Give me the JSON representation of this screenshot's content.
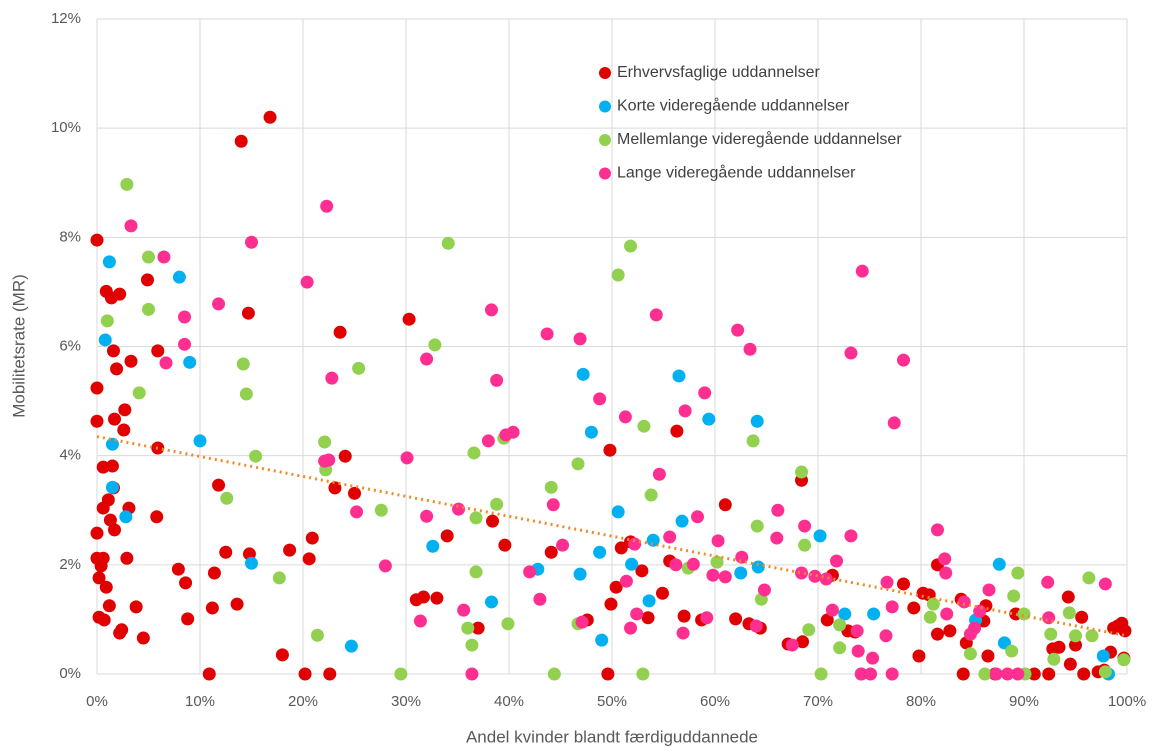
{
  "chart_data": {
    "type": "scatter",
    "x_label": "Andel kvinder blandt færdiguddannede",
    "y_label": "Mobilitetsrate (MR)",
    "xlim": [
      0,
      100
    ],
    "ylim": [
      0,
      12
    ],
    "xticks": [
      {
        "value": 0,
        "label": "0%"
      },
      {
        "value": 10,
        "label": "10%"
      },
      {
        "value": 20,
        "label": "20%"
      },
      {
        "value": 30,
        "label": "30%"
      },
      {
        "value": 40,
        "label": "40%"
      },
      {
        "value": 50,
        "label": "50%"
      },
      {
        "value": 60,
        "label": "60%"
      },
      {
        "value": 70,
        "label": "70%"
      },
      {
        "value": 80,
        "label": "80%"
      },
      {
        "value": 90,
        "label": "90%"
      },
      {
        "value": 100,
        "label": "100%"
      }
    ],
    "yticks": [
      {
        "value": 0,
        "label": "0%"
      },
      {
        "value": 2,
        "label": "2%"
      },
      {
        "value": 4,
        "label": "4%"
      },
      {
        "value": 6,
        "label": "6%"
      },
      {
        "value": 8,
        "label": "8%"
      },
      {
        "value": 10,
        "label": "10%"
      },
      {
        "value": 12,
        "label": "12%"
      }
    ],
    "grid": true,
    "legend": "top-center",
    "series": [
      {
        "name": "Erhvervsfaglige uddannelser",
        "color": "#e00000",
        "x": [
          0,
          0,
          0,
          0,
          0,
          0.2,
          0.2,
          0.4,
          0.6,
          0.6,
          0.6,
          0.7,
          0.9,
          0.9,
          1.1,
          1.3,
          1.2,
          1.4,
          1.5,
          1.6,
          1.6,
          1.7,
          1.7,
          1.9,
          2.2,
          2.2,
          2.4,
          2.6,
          2.7,
          2.9,
          3.1,
          3.3,
          3.8,
          4.5,
          4.9,
          5.8,
          5.9,
          5.9,
          7.9,
          8.6,
          8.8,
          10.9,
          11.2,
          11.4,
          11.8,
          12.5,
          13.6,
          14.0,
          14.7,
          14.8,
          16.8,
          18.0,
          18.7,
          20.2,
          20.6,
          20.9,
          22.6,
          23.1,
          23.6,
          24.1,
          25.0,
          30.3,
          31.0,
          31.7,
          33.0,
          34.0,
          37.0,
          38.4,
          39.6,
          44.1,
          47.6,
          49.6,
          49.8,
          49.9,
          50.4,
          50.9,
          51.8,
          52.9,
          53.5,
          54.9,
          55.6,
          56.3,
          57.0,
          58.7,
          61.0,
          62.0,
          63.3,
          64.4,
          67.1,
          68.4,
          68.5,
          70.9,
          71.4,
          72.9,
          73.6,
          78.3,
          79.3,
          79.8,
          80.2,
          80.8,
          81.6,
          81.6,
          82.8,
          83.9,
          84.1,
          84.4,
          86.1,
          86.3,
          86.5,
          87.2,
          89.2,
          91.0,
          92.4,
          92.8,
          93.4,
          94.3,
          94.5,
          95.0,
          95.6,
          95.8,
          97.2,
          97.8,
          98.4,
          98.7,
          99.1,
          99.5,
          99.7,
          99.8
        ],
        "values": [
          7.95,
          5.24,
          4.63,
          2.58,
          2.12,
          1.04,
          1.76,
          1.98,
          3.79,
          3.04,
          2.12,
          0.99,
          7.01,
          1.59,
          3.19,
          2.82,
          1.25,
          6.89,
          3.81,
          3.41,
          5.92,
          4.67,
          2.64,
          5.59,
          6.96,
          0.75,
          0.81,
          4.47,
          4.84,
          2.12,
          3.04,
          5.73,
          1.23,
          0.66,
          7.22,
          2.88,
          4.14,
          5.92,
          1.92,
          1.67,
          1.01,
          0,
          1.21,
          1.85,
          3.46,
          2.23,
          1.28,
          9.76,
          6.61,
          2.2,
          10.2,
          0.35,
          2.27,
          0,
          2.11,
          2.49,
          0,
          3.41,
          6.26,
          3.99,
          3.31,
          6.5,
          1.36,
          1.41,
          1.39,
          2.53,
          0.84,
          2.8,
          2.36,
          2.23,
          0.99,
          0,
          4.1,
          1.28,
          1.59,
          2.31,
          2.42,
          1.89,
          1.03,
          1.48,
          2.07,
          4.45,
          1.06,
          0.99,
          3.1,
          1.01,
          0.92,
          0.84,
          0.55,
          3.55,
          0.59,
          0.99,
          1.81,
          0.79,
          0.77,
          1.65,
          1.21,
          0.33,
          1.48,
          1.45,
          2.0,
          0.73,
          0.79,
          1.37,
          0,
          0.57,
          0.97,
          1.25,
          0.33,
          0,
          1.1,
          0,
          0,
          0.46,
          0.49,
          1.41,
          0.18,
          0.53,
          1.04,
          0,
          0.04,
          0.07,
          0.4,
          0.84,
          0.88,
          0.93,
          0.29,
          0.79
        ]
      },
      {
        "name": "Korte videregående uddannelser",
        "color": "#00b0f0",
        "x": [
          1.2,
          0.8,
          1.5,
          1.5,
          2.8,
          8.0,
          9.0,
          10.0,
          15.0,
          24.7,
          32.6,
          38.3,
          42.8,
          46.9,
          47.2,
          48.0,
          48.8,
          49.0,
          50.6,
          51.9,
          53.6,
          54.0,
          56.5,
          56.8,
          59.4,
          62.5,
          64.1,
          64.2,
          70.2,
          72.6,
          74.2,
          75.4,
          85.3,
          87.6,
          88.1,
          97.7,
          98.2
        ],
        "values": [
          7.55,
          6.12,
          4.21,
          3.42,
          2.88,
          7.27,
          5.71,
          4.27,
          2.03,
          0.51,
          2.34,
          1.32,
          1.92,
          1.83,
          5.49,
          4.43,
          2.23,
          0.62,
          2.97,
          2.01,
          1.34,
          2.45,
          5.46,
          2.8,
          4.67,
          1.85,
          4.63,
          1.96,
          2.53,
          1.1,
          0,
          1.1,
          0.99,
          2.01,
          0.57,
          0.33,
          0
        ]
      },
      {
        "name": "Mellemlange videregående uddannelser",
        "color": "#92d050",
        "x": [
          2.9,
          1.0,
          4.1,
          5.0,
          5.0,
          12.6,
          14.2,
          14.5,
          15.4,
          17.7,
          21.4,
          22.1,
          22.2,
          25.4,
          27.6,
          29.5,
          32.8,
          34.1,
          36.0,
          36.4,
          36.6,
          36.8,
          36.8,
          38.8,
          39.5,
          39.9,
          44.1,
          44.4,
          46.7,
          46.7,
          50.6,
          51.8,
          53.0,
          53.1,
          53.8,
          57.4,
          60.2,
          63.7,
          64.1,
          64.5,
          68.4,
          68.7,
          69.1,
          70.3,
          72.1,
          72.1,
          80.9,
          81.2,
          84.8,
          86.2,
          88.8,
          89.0,
          89.4,
          90.1,
          90.0,
          92.6,
          92.9,
          94.4,
          95.0,
          96.3,
          96.6,
          97.9,
          99.7
        ],
        "values": [
          8.97,
          6.47,
          5.15,
          7.64,
          6.68,
          3.22,
          5.68,
          5.13,
          3.99,
          1.76,
          0.71,
          4.25,
          3.74,
          5.6,
          3.0,
          0,
          6.03,
          7.89,
          0.84,
          0.53,
          4.05,
          2.86,
          1.87,
          3.11,
          4.32,
          0.92,
          3.42,
          0,
          0.92,
          3.85,
          7.31,
          7.84,
          0,
          4.54,
          3.28,
          1.94,
          2.05,
          4.27,
          2.71,
          1.37,
          3.7,
          2.36,
          0.81,
          0,
          0.9,
          0.48,
          1.04,
          1.28,
          0.37,
          0,
          0.42,
          1.43,
          1.85,
          0,
          1.1,
          0.73,
          0.27,
          1.12,
          0.7,
          1.76,
          0.7,
          0.04,
          0.26
        ]
      },
      {
        "name": "Lange videregående uddannelser",
        "color": "#ff2f92",
        "x": [
          3.3,
          6.5,
          6.7,
          8.5,
          8.5,
          11.8,
          15.0,
          20.4,
          22.3,
          22.8,
          22.1,
          22.5,
          25.2,
          28.0,
          30.1,
          31.4,
          32.0,
          32.0,
          35.1,
          35.6,
          36.4,
          38.0,
          38.3,
          38.8,
          39.7,
          40.4,
          42.0,
          43.0,
          43.7,
          44.3,
          45.2,
          46.9,
          47.1,
          48.8,
          51.3,
          51.4,
          51.8,
          52.2,
          52.4,
          54.3,
          54.6,
          55.6,
          56.2,
          56.9,
          57.1,
          57.9,
          58.3,
          59.0,
          59.2,
          59.8,
          60.3,
          61.0,
          62.2,
          62.6,
          63.4,
          64.0,
          64.8,
          66.0,
          66.1,
          67.5,
          68.4,
          68.7,
          69.7,
          70.8,
          71.4,
          71.8,
          73.2,
          73.2,
          73.8,
          73.9,
          74.2,
          74.3,
          75.1,
          75.3,
          76.6,
          76.7,
          77.4,
          77.2,
          77.2,
          78.3,
          81.6,
          82.3,
          82.4,
          82.5,
          84.2,
          84.8,
          85.2,
          85.7,
          86.6,
          87.3,
          88.4,
          89.4,
          92.3,
          92.4,
          97.9
        ],
        "values": [
          8.21,
          7.64,
          5.7,
          6.54,
          6.04,
          6.78,
          7.91,
          7.18,
          8.57,
          5.42,
          3.9,
          3.92,
          2.97,
          1.98,
          3.96,
          0.97,
          5.77,
          2.89,
          3.02,
          1.17,
          0,
          4.27,
          6.67,
          5.38,
          4.38,
          4.43,
          1.87,
          1.37,
          6.23,
          3.1,
          2.36,
          6.14,
          0.95,
          5.04,
          4.71,
          1.7,
          0.84,
          2.38,
          1.1,
          6.58,
          3.66,
          2.51,
          2.0,
          0.75,
          4.82,
          2.01,
          2.88,
          5.15,
          1.03,
          1.81,
          2.44,
          1.78,
          6.3,
          2.14,
          5.95,
          0.88,
          1.54,
          2.49,
          3.0,
          0.53,
          1.85,
          2.71,
          1.79,
          1.74,
          1.17,
          2.07,
          2.53,
          5.88,
          0.79,
          0.42,
          0,
          7.38,
          0,
          0.29,
          0.7,
          1.68,
          4.6,
          1.23,
          0,
          5.75,
          2.64,
          2.11,
          1.85,
          1.1,
          1.32,
          0.73,
          0.84,
          1.15,
          1.54,
          0,
          0,
          0,
          1.68,
          1.03,
          1.65
        ]
      }
    ],
    "trendline": {
      "color": "#f08a24",
      "x": [
        0,
        100
      ],
      "values": [
        4.35,
        0.7
      ]
    }
  }
}
